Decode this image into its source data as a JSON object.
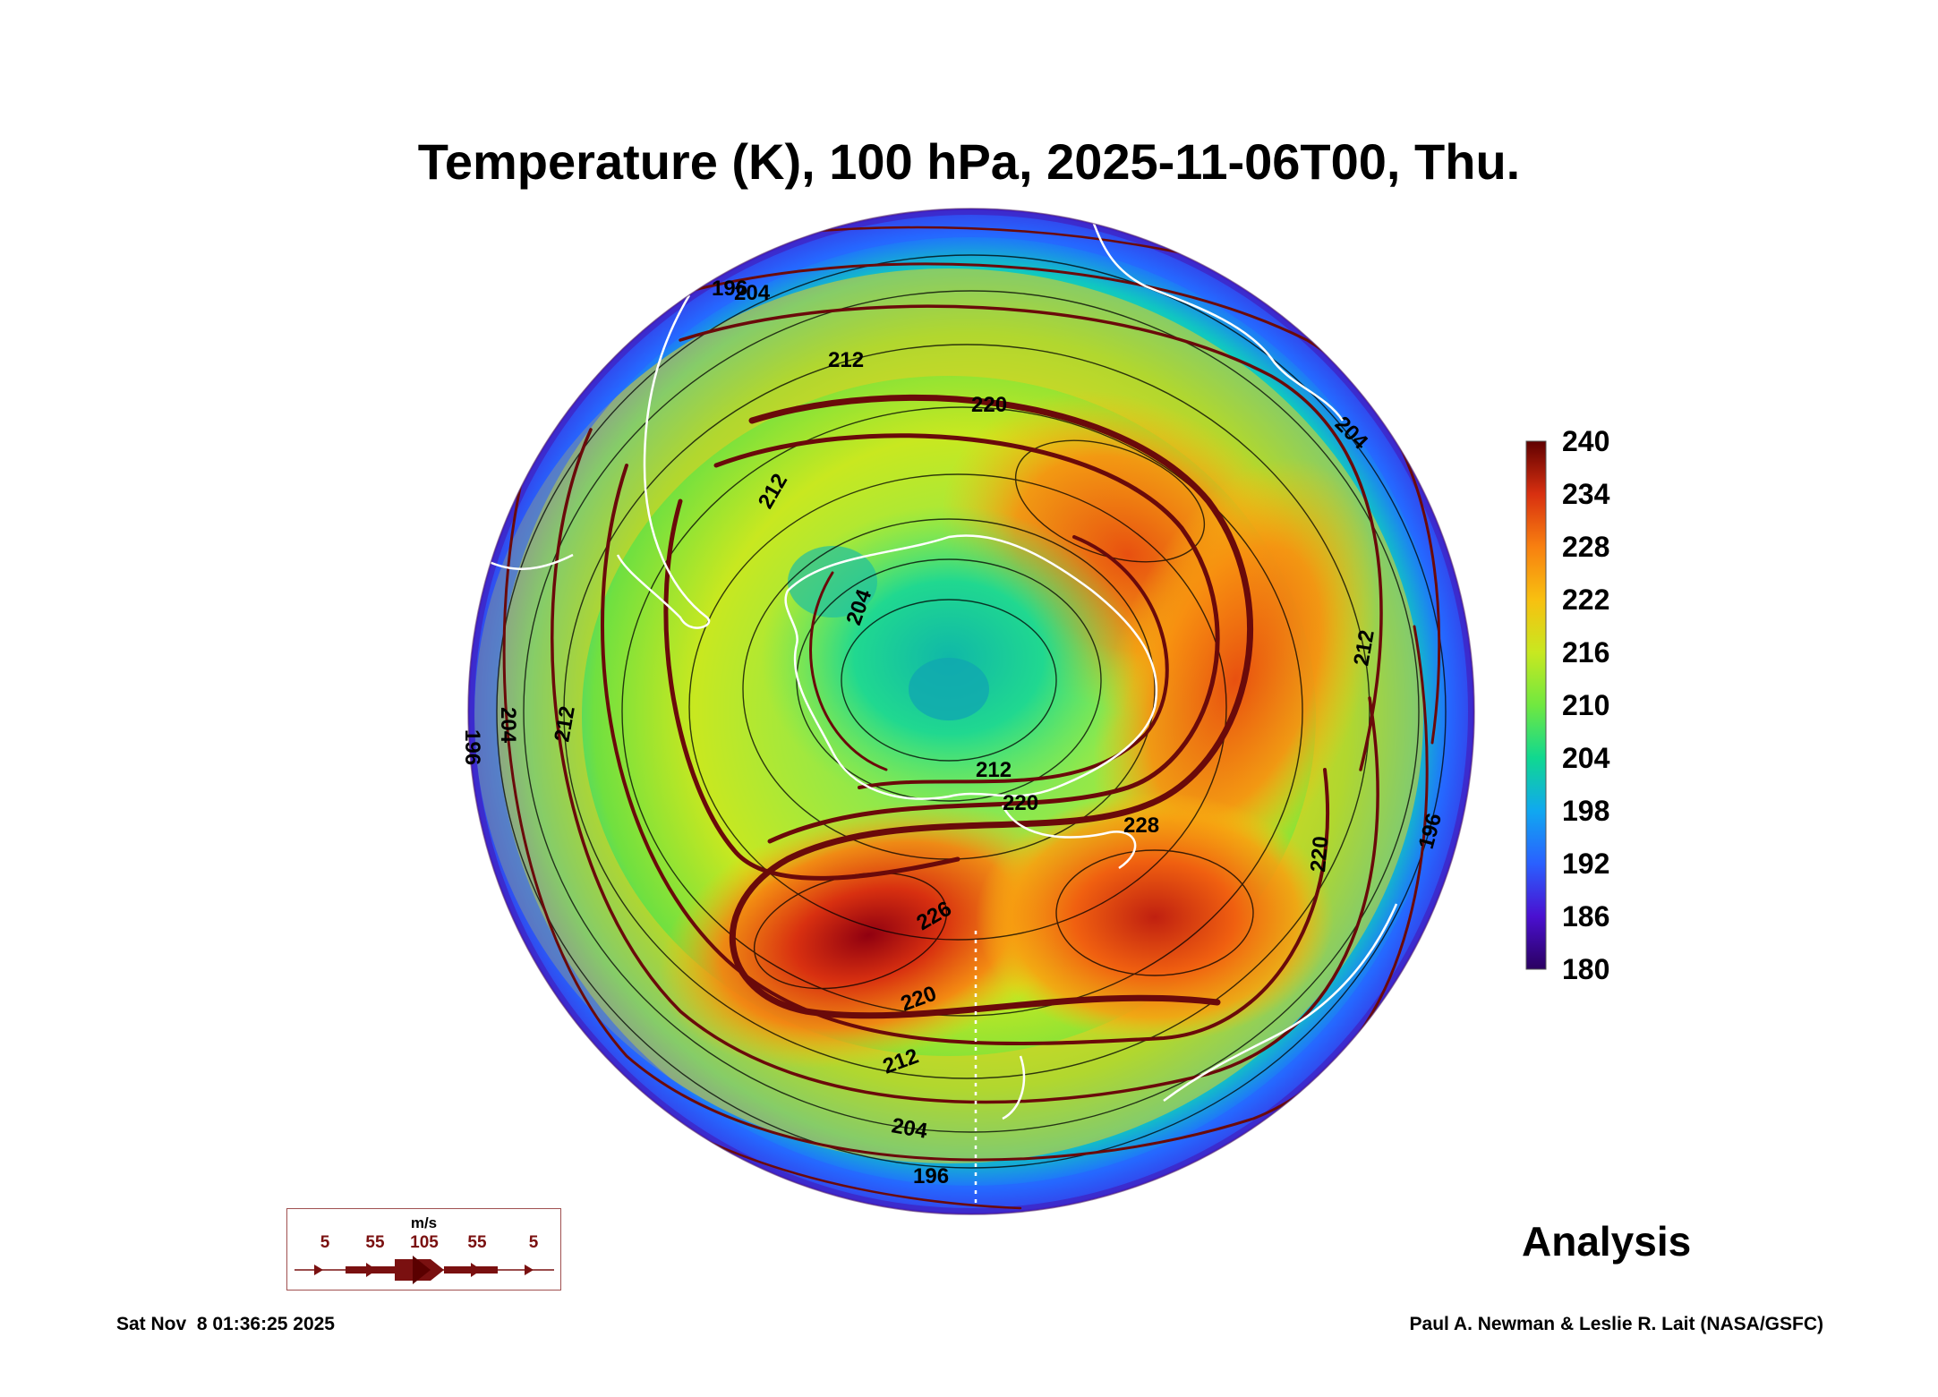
{
  "title": "Temperature (K), 100 hPa, 2025-11-06T00, Thu.",
  "colorbar": {
    "ticks": [
      "240",
      "234",
      "228",
      "222",
      "216",
      "210",
      "204",
      "198",
      "192",
      "186",
      "180"
    ],
    "colors": [
      "#3a0050",
      "#4a10c8",
      "#2a60ff",
      "#10a8f0",
      "#10d890",
      "#70e840",
      "#c8e820",
      "#f8c010",
      "#f88010",
      "#e04010",
      "#b01010",
      "#6a0000"
    ]
  },
  "contour_labels": [
    "196",
    "204",
    "212",
    "220",
    "212",
    "212",
    "204",
    "212",
    "220",
    "228",
    "226",
    "220",
    "212",
    "204",
    "196",
    "220",
    "204",
    "196",
    "212",
    "196",
    "204"
  ],
  "wind_legend": {
    "unit": "m/s",
    "labels": [
      "5",
      "55",
      "105",
      "55",
      "5"
    ],
    "color": "#7a1010"
  },
  "analysis_label": "Analysis",
  "footer": {
    "timestamp": "Sat Nov  8 01:36:25 2025",
    "credit": "Paul A. Newman & Leslie R. Lait (NASA/GSFC)"
  }
}
